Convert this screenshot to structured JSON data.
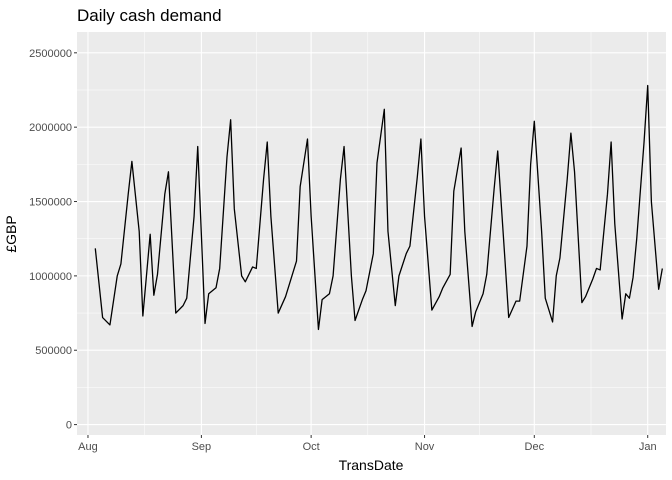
{
  "chart_data": {
    "type": "line",
    "title": "Daily cash demand",
    "xlabel": "TransDate",
    "ylabel": "£GBP",
    "ylim": [
      -70000,
      2640000
    ],
    "xlim": [
      "2019-07-29",
      "2020-01-06"
    ],
    "grid": true,
    "legend": "none",
    "x_ticks": [
      {
        "date": "2019-08-01",
        "label": "Aug"
      },
      {
        "date": "2019-09-01",
        "label": "Sep"
      },
      {
        "date": "2019-10-01",
        "label": "Oct"
      },
      {
        "date": "2019-11-01",
        "label": "Nov"
      },
      {
        "date": "2019-12-01",
        "label": "Dec"
      },
      {
        "date": "2020-01-01",
        "label": "Jan"
      }
    ],
    "y_ticks": [
      {
        "value": 0,
        "label": "0"
      },
      {
        "value": 500000,
        "label": "500000"
      },
      {
        "value": 1000000,
        "label": "1000000"
      },
      {
        "value": 1500000,
        "label": "1500000"
      },
      {
        "value": 2000000,
        "label": "2000000"
      },
      {
        "value": 2500000,
        "label": "2500000"
      }
    ],
    "series": [
      {
        "color": "#000000",
        "points": [
          [
            "2019-08-03",
            1185000
          ],
          [
            "2019-08-05",
            720000
          ],
          [
            "2019-08-07",
            670000
          ],
          [
            "2019-08-09",
            1000000
          ],
          [
            "2019-08-10",
            1080000
          ],
          [
            "2019-08-12",
            1550000
          ],
          [
            "2019-08-13",
            1770000
          ],
          [
            "2019-08-15",
            1300000
          ],
          [
            "2019-08-16",
            730000
          ],
          [
            "2019-08-18",
            1280000
          ],
          [
            "2019-08-19",
            870000
          ],
          [
            "2019-08-20",
            1010000
          ],
          [
            "2019-08-22",
            1550000
          ],
          [
            "2019-08-23",
            1700000
          ],
          [
            "2019-08-25",
            750000
          ],
          [
            "2019-08-27",
            800000
          ],
          [
            "2019-08-28",
            850000
          ],
          [
            "2019-08-30",
            1400000
          ],
          [
            "2019-08-31",
            1870000
          ],
          [
            "2019-09-02",
            680000
          ],
          [
            "2019-09-03",
            880000
          ],
          [
            "2019-09-05",
            920000
          ],
          [
            "2019-09-06",
            1050000
          ],
          [
            "2019-09-08",
            1800000
          ],
          [
            "2019-09-09",
            2050000
          ],
          [
            "2019-09-10",
            1450000
          ],
          [
            "2019-09-12",
            1000000
          ],
          [
            "2019-09-13",
            960000
          ],
          [
            "2019-09-15",
            1060000
          ],
          [
            "2019-09-16",
            1050000
          ],
          [
            "2019-09-18",
            1650000
          ],
          [
            "2019-09-19",
            1900000
          ],
          [
            "2019-09-20",
            1400000
          ],
          [
            "2019-09-22",
            750000
          ],
          [
            "2019-09-24",
            860000
          ],
          [
            "2019-09-25",
            940000
          ],
          [
            "2019-09-27",
            1100000
          ],
          [
            "2019-09-28",
            1600000
          ],
          [
            "2019-09-30",
            1920000
          ],
          [
            "2019-10-01",
            1400000
          ],
          [
            "2019-10-03",
            640000
          ],
          [
            "2019-10-04",
            840000
          ],
          [
            "2019-10-06",
            880000
          ],
          [
            "2019-10-07",
            1000000
          ],
          [
            "2019-10-09",
            1650000
          ],
          [
            "2019-10-10",
            1870000
          ],
          [
            "2019-10-12",
            1000000
          ],
          [
            "2019-10-13",
            700000
          ],
          [
            "2019-10-15",
            840000
          ],
          [
            "2019-10-16",
            900000
          ],
          [
            "2019-10-18",
            1150000
          ],
          [
            "2019-10-19",
            1760000
          ],
          [
            "2019-10-21",
            2120000
          ],
          [
            "2019-10-22",
            1300000
          ],
          [
            "2019-10-24",
            800000
          ],
          [
            "2019-10-25",
            1000000
          ],
          [
            "2019-10-27",
            1150000
          ],
          [
            "2019-10-28",
            1200000
          ],
          [
            "2019-10-30",
            1660000
          ],
          [
            "2019-10-31",
            1920000
          ],
          [
            "2019-11-01",
            1400000
          ],
          [
            "2019-11-03",
            770000
          ],
          [
            "2019-11-05",
            860000
          ],
          [
            "2019-11-06",
            920000
          ],
          [
            "2019-11-08",
            1010000
          ],
          [
            "2019-11-09",
            1570000
          ],
          [
            "2019-11-11",
            1860000
          ],
          [
            "2019-11-12",
            1300000
          ],
          [
            "2019-11-14",
            660000
          ],
          [
            "2019-11-15",
            760000
          ],
          [
            "2019-11-17",
            880000
          ],
          [
            "2019-11-18",
            1010000
          ],
          [
            "2019-11-20",
            1580000
          ],
          [
            "2019-11-21",
            1840000
          ],
          [
            "2019-11-23",
            1100000
          ],
          [
            "2019-11-24",
            720000
          ],
          [
            "2019-11-26",
            830000
          ],
          [
            "2019-11-27",
            830000
          ],
          [
            "2019-11-29",
            1200000
          ],
          [
            "2019-11-30",
            1750000
          ],
          [
            "2019-12-01",
            2040000
          ],
          [
            "2019-12-03",
            1300000
          ],
          [
            "2019-12-04",
            850000
          ],
          [
            "2019-12-06",
            690000
          ],
          [
            "2019-12-07",
            1000000
          ],
          [
            "2019-12-08",
            1120000
          ],
          [
            "2019-12-10",
            1650000
          ],
          [
            "2019-12-11",
            1960000
          ],
          [
            "2019-12-12",
            1700000
          ],
          [
            "2019-12-14",
            820000
          ],
          [
            "2019-12-15",
            860000
          ],
          [
            "2019-12-17",
            980000
          ],
          [
            "2019-12-18",
            1050000
          ],
          [
            "2019-12-19",
            1040000
          ],
          [
            "2019-12-21",
            1550000
          ],
          [
            "2019-12-22",
            1900000
          ],
          [
            "2019-12-23",
            1350000
          ],
          [
            "2019-12-25",
            710000
          ],
          [
            "2019-12-26",
            880000
          ],
          [
            "2019-12-27",
            850000
          ],
          [
            "2019-12-28",
            990000
          ],
          [
            "2019-12-29",
            1250000
          ],
          [
            "2019-12-31",
            1900000
          ],
          [
            "2020-01-01",
            2280000
          ],
          [
            "2020-01-02",
            1500000
          ],
          [
            "2020-01-04",
            910000
          ],
          [
            "2020-01-05",
            1050000
          ]
        ]
      }
    ]
  }
}
